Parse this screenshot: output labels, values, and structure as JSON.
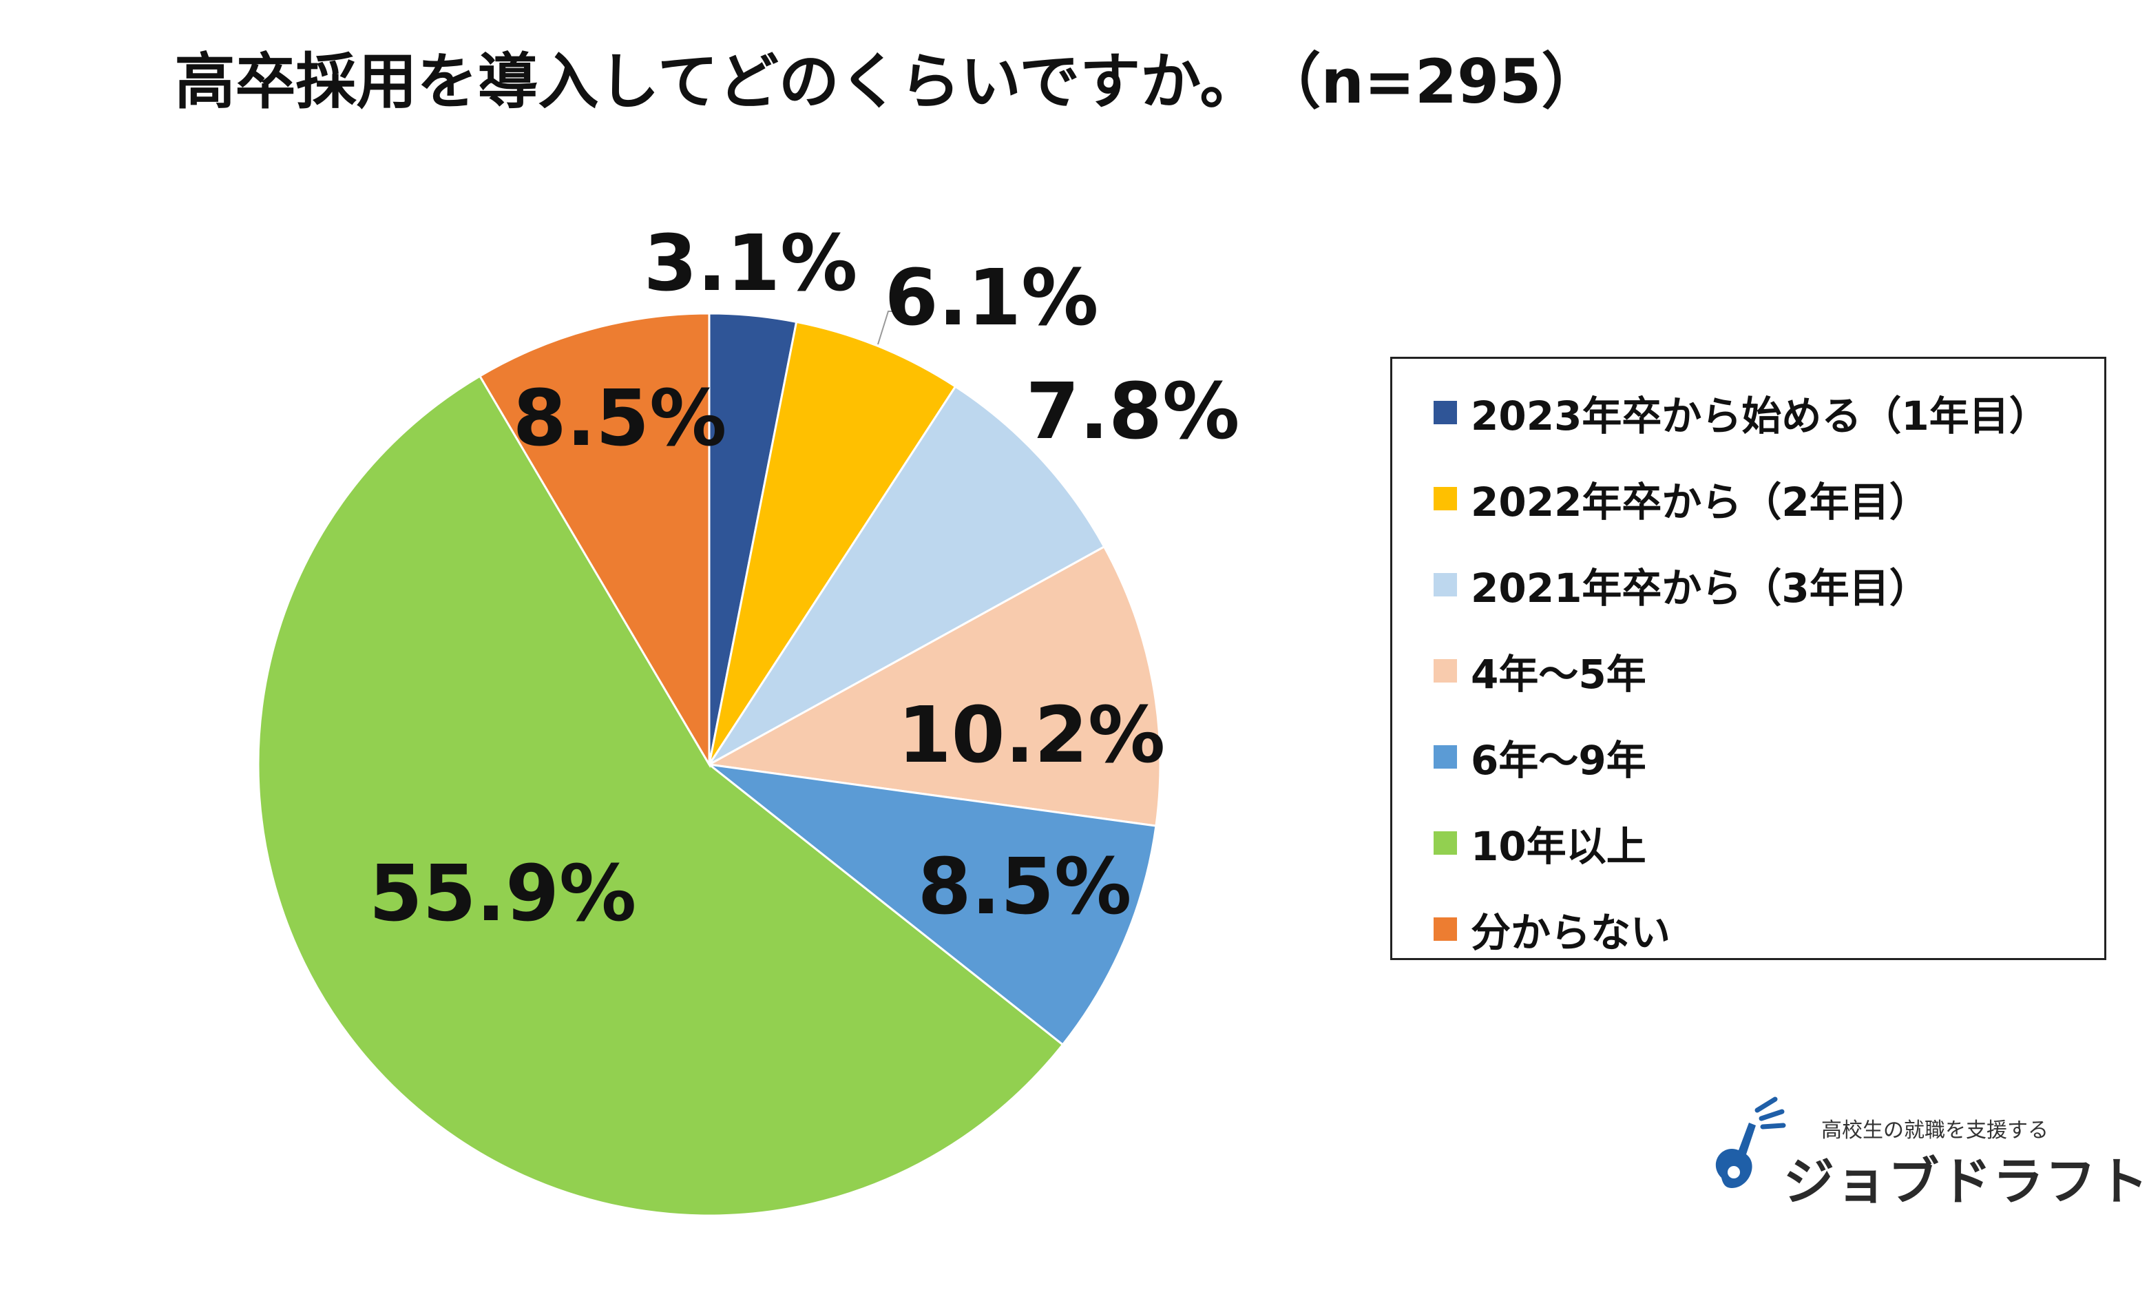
{
  "title": "高卒採用を導入してどのくらいですか。　（n=295）",
  "chart_data": {
    "type": "pie",
    "title": "高卒採用を導入してどのくらいですか。　（n=295）",
    "start_angle_deg": 0,
    "direction": "clockwise",
    "legend_position": "right",
    "slices": [
      {
        "label": "2023年卒から始める（1年目）",
        "value": 3.1,
        "display": "3.1%",
        "color": "#2F5597"
      },
      {
        "label": "2022年卒から（2年目）",
        "value": 6.1,
        "display": "6.1%",
        "color": "#FFC000"
      },
      {
        "label": "2021年卒から（3年目）",
        "value": 7.8,
        "display": "7.8%",
        "color": "#BDD7EE"
      },
      {
        "label": "4年～5年",
        "value": 10.2,
        "display": "10.2%",
        "color": "#F8CBAD"
      },
      {
        "label": "6年～9年",
        "value": 8.5,
        "display": "8.5%",
        "color": "#5B9BD5"
      },
      {
        "label": "10年以上",
        "value": 55.9,
        "display": "55.9%",
        "color": "#92D050"
      },
      {
        "label": "分からない",
        "value": 8.5,
        "display": "8.5%",
        "color": "#ED7D31"
      }
    ]
  },
  "logo": {
    "tagline": "高校生の就職を支援する",
    "name": "ジョブドラフト",
    "icon": "guitar-note-icon",
    "color": "#1F5FA8"
  }
}
